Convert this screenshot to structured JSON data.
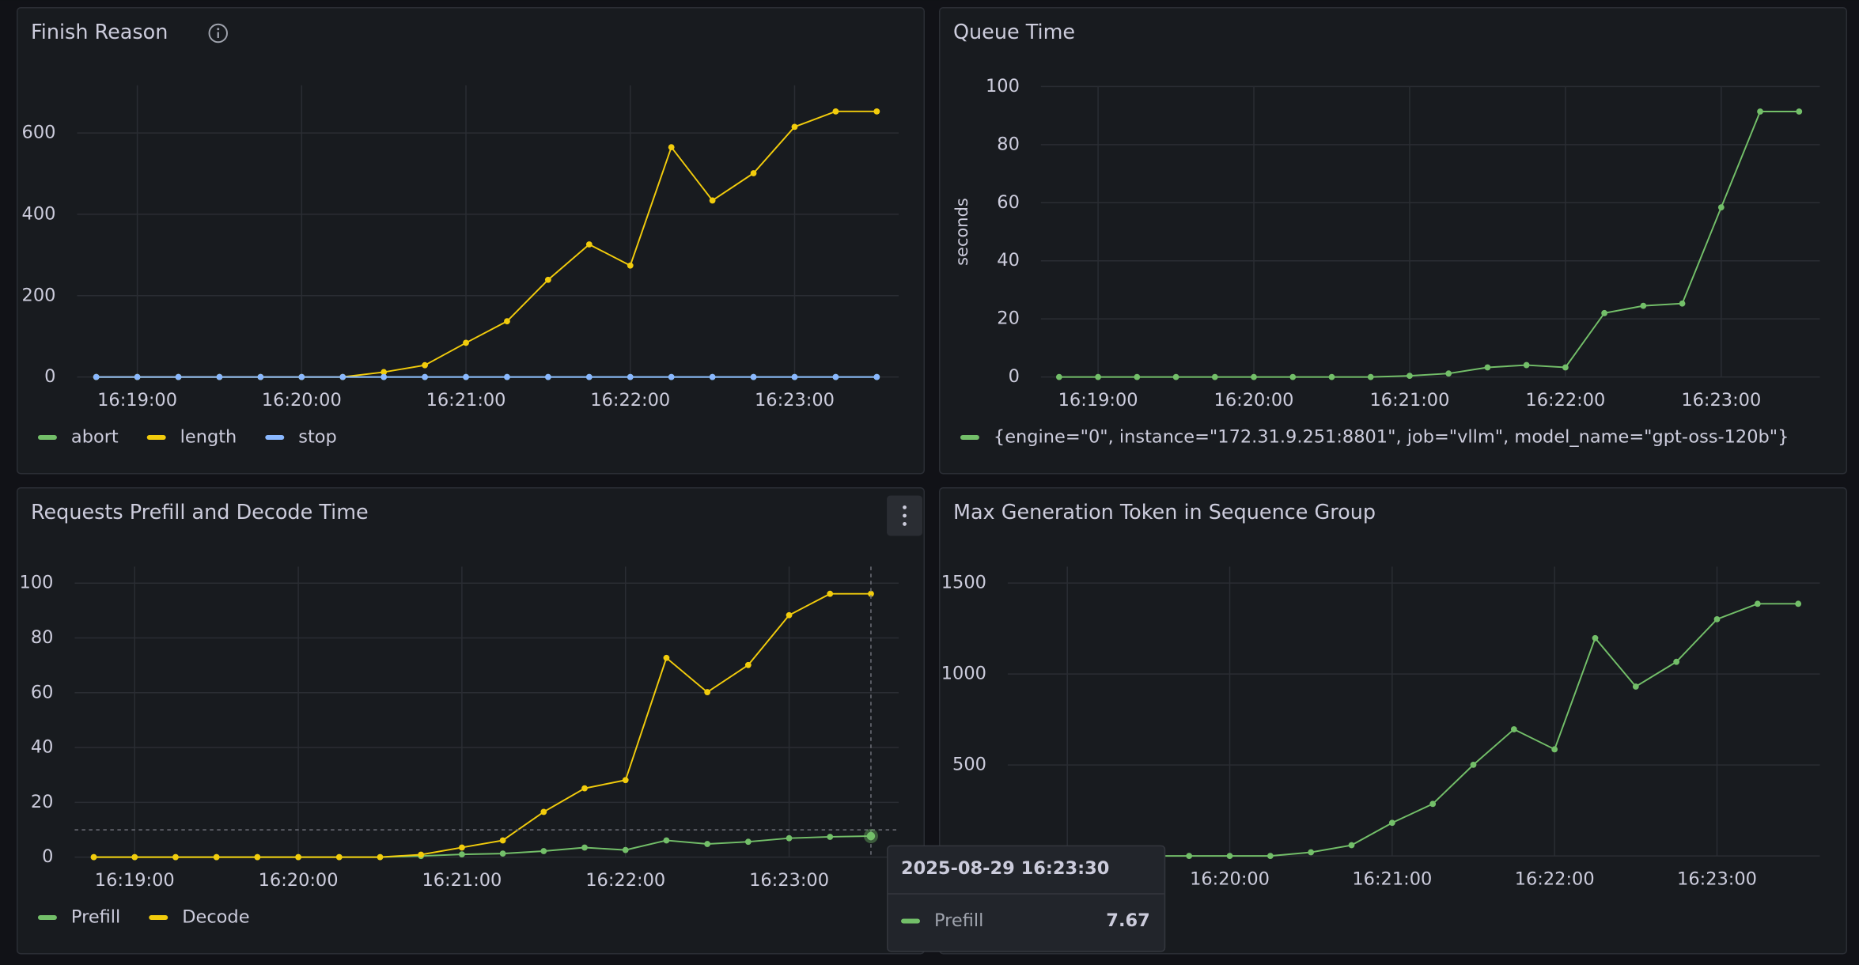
{
  "chart_data": [
    {
      "type": "line",
      "title": "Finish Reason",
      "x": [
        "16:18:45",
        "16:19:00",
        "16:19:15",
        "16:19:30",
        "16:19:45",
        "16:20:00",
        "16:20:15",
        "16:20:30",
        "16:20:45",
        "16:21:00",
        "16:21:15",
        "16:21:30",
        "16:21:45",
        "16:22:00",
        "16:22:15",
        "16:22:30",
        "16:22:45",
        "16:23:00",
        "16:23:15",
        "16:23:30"
      ],
      "series": [
        {
          "name": "abort",
          "color": "#73bf69",
          "values": [
            0,
            0,
            0,
            0,
            0,
            0,
            0,
            0,
            0,
            0,
            0,
            0,
            0,
            0,
            0,
            0,
            0,
            0,
            0,
            0
          ]
        },
        {
          "name": "length",
          "color": "#f2cc0c",
          "values": [
            0,
            0,
            0,
            0,
            0,
            0,
            0,
            12,
            29,
            84,
            137,
            239,
            326,
            274,
            565,
            434,
            501,
            615,
            653,
            653
          ]
        },
        {
          "name": "stop",
          "color": "#8ab8ff",
          "values": [
            0,
            0,
            0,
            0,
            0,
            0,
            0,
            0,
            0,
            0,
            0,
            0,
            0,
            0,
            0,
            0,
            0,
            0,
            0,
            0
          ]
        }
      ],
      "xlim": [
        "16:18:38",
        "16:23:38"
      ],
      "xticks": [
        "16:19:00",
        "16:20:00",
        "16:21:00",
        "16:22:00",
        "16:23:00"
      ],
      "ylim": [
        0,
        717
      ],
      "yticks": [
        0,
        200,
        400,
        600
      ],
      "grid": true,
      "legend": "bottom"
    },
    {
      "type": "line",
      "title": "Queue Time",
      "ylabel": "seconds",
      "x": [
        "16:18:45",
        "16:19:00",
        "16:19:15",
        "16:19:30",
        "16:19:45",
        "16:20:00",
        "16:20:15",
        "16:20:30",
        "16:20:45",
        "16:21:00",
        "16:21:15",
        "16:21:30",
        "16:21:45",
        "16:22:00",
        "16:22:15",
        "16:22:30",
        "16:22:45",
        "16:23:00",
        "16:23:15",
        "16:23:30"
      ],
      "series": [
        {
          "name": "{engine=\"0\", instance=\"172.31.9.251:8801\", job=\"vllm\", model_name=\"gpt-oss-120b\"}",
          "color": "#73bf69",
          "values": [
            0,
            0,
            0,
            0,
            0,
            0,
            0,
            0,
            0,
            0.4,
            1.2,
            3.3,
            4.1,
            3.3,
            22,
            24.5,
            25.3,
            58.4,
            91.4,
            91.4
          ]
        }
      ],
      "xlim": [
        "16:18:38",
        "16:23:38"
      ],
      "xticks": [
        "16:19:00",
        "16:20:00",
        "16:21:00",
        "16:22:00",
        "16:23:00"
      ],
      "ylim": [
        0,
        100
      ],
      "yticks": [
        0,
        20,
        40,
        60,
        80,
        100
      ],
      "grid": true,
      "legend": "bottom"
    },
    {
      "type": "line",
      "title": "Requests Prefill and Decode Time",
      "x": [
        "16:18:45",
        "16:19:00",
        "16:19:15",
        "16:19:30",
        "16:19:45",
        "16:20:00",
        "16:20:15",
        "16:20:30",
        "16:20:45",
        "16:21:00",
        "16:21:15",
        "16:21:30",
        "16:21:45",
        "16:22:00",
        "16:22:15",
        "16:22:30",
        "16:22:45",
        "16:23:00",
        "16:23:15",
        "16:23:30"
      ],
      "series": [
        {
          "name": "Prefill",
          "color": "#73bf69",
          "values": [
            0,
            0,
            0,
            0,
            0,
            0,
            0,
            0,
            0.4,
            1,
            1.3,
            2.2,
            3.5,
            2.6,
            6.1,
            4.8,
            5.6,
            6.9,
            7.4,
            7.67
          ]
        },
        {
          "name": "Decode",
          "color": "#f2cc0c",
          "values": [
            0,
            0,
            0,
            0,
            0,
            0,
            0,
            0,
            0.9,
            3.5,
            6.1,
            16.5,
            25.1,
            28.1,
            72.7,
            60.2,
            70.1,
            88.3,
            96.1,
            96.1
          ]
        }
      ],
      "xlim": [
        "16:18:38",
        "16:23:38"
      ],
      "xticks": [
        "16:19:00",
        "16:20:00",
        "16:21:00",
        "16:22:00",
        "16:23:00"
      ],
      "ylim": [
        0,
        106
      ],
      "yticks": [
        0,
        20,
        40,
        60,
        80,
        100
      ],
      "grid": true,
      "legend": "bottom",
      "tooltip": {
        "title": "2025-08-29 16:23:30",
        "series": "Prefill",
        "value": 7.67
      }
    },
    {
      "type": "line",
      "title": "Max Generation Token in Sequence Group",
      "x": [
        "16:18:45",
        "16:19:00",
        "16:19:15",
        "16:19:30",
        "16:19:45",
        "16:20:00",
        "16:20:15",
        "16:20:30",
        "16:20:45",
        "16:21:00",
        "16:21:15",
        "16:21:30",
        "16:21:45",
        "16:22:00",
        "16:22:15",
        "16:22:30",
        "16:22:45",
        "16:23:00",
        "16:23:15",
        "16:23:30"
      ],
      "series": [
        {
          "name": "Max Generation Token",
          "color": "#73bf69",
          "values": [
            0,
            0,
            0,
            0,
            0,
            0,
            0,
            20,
            59,
            182,
            286,
            501,
            696,
            586,
            1197,
            931,
            1067,
            1301,
            1386,
            1386
          ]
        }
      ],
      "xlim": [
        "16:18:38",
        "16:23:38"
      ],
      "xticks": [
        "16:19:00",
        "16:20:00",
        "16:21:00",
        "16:22:00",
        "16:23:00"
      ],
      "ylim": [
        0,
        1590
      ],
      "yticks": [
        0,
        500,
        1000,
        1500
      ],
      "grid": true,
      "legend": "none"
    }
  ]
}
